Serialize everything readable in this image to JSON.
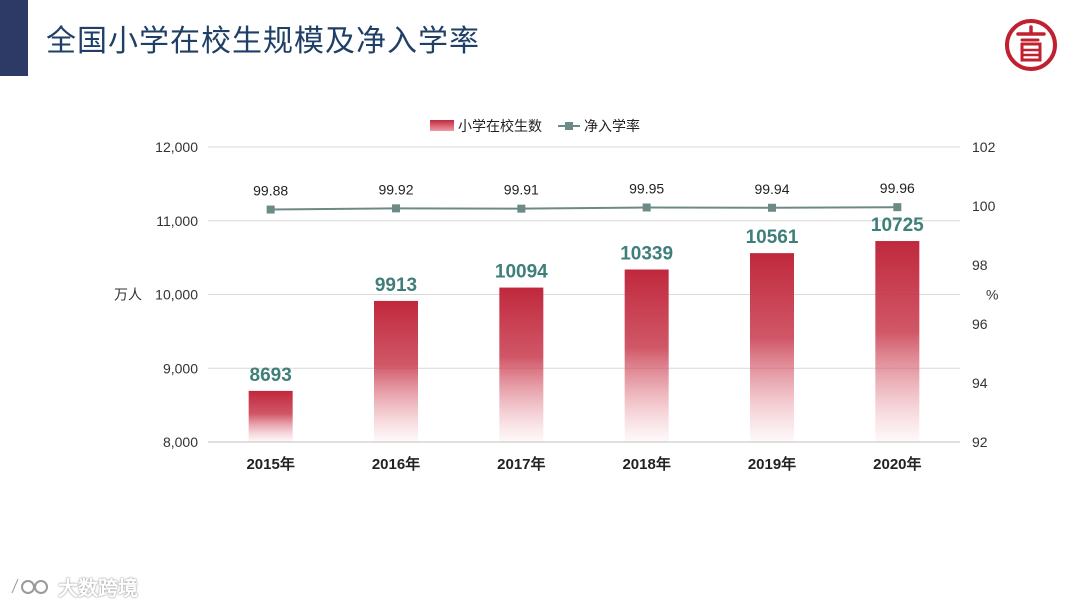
{
  "slide": {
    "title": "全国小学在校生规模及净入学率",
    "accent_color": "#2e3a66",
    "title_color": "#1f3f67",
    "logo_icon": "logo-seal-icon",
    "logo_color": "#c0202f",
    "watermark_text": "大数跨境"
  },
  "chart_data": {
    "type": "bar",
    "categories": [
      "2015年",
      "2016年",
      "2017年",
      "2018年",
      "2019年",
      "2020年"
    ],
    "series": [
      {
        "name": "小学在校生数",
        "type": "bar",
        "axis": "left",
        "values": [
          8693,
          9913,
          10094,
          10339,
          10561,
          10725
        ],
        "labels": [
          "8693",
          "9913",
          "10094",
          "10339",
          "10561",
          "10725"
        ],
        "color": "#c0283c"
      },
      {
        "name": "净入学率",
        "type": "line",
        "axis": "right",
        "values": [
          99.88,
          99.92,
          99.91,
          99.95,
          99.94,
          99.96
        ],
        "labels": [
          "99.88",
          "99.92",
          "99.91",
          "99.95",
          "99.94",
          "99.96"
        ],
        "color": "#6e8a87"
      }
    ],
    "y_left": {
      "label": "万人",
      "ylim": [
        8000,
        12000
      ],
      "ticks": [
        8000,
        9000,
        10000,
        11000,
        12000
      ],
      "tick_labels": [
        "8,000",
        "9,000",
        "10,000",
        "11,000",
        "12,000"
      ]
    },
    "y_right": {
      "label": "%",
      "ylim": [
        92,
        102
      ],
      "ticks": [
        92,
        94,
        96,
        98,
        100,
        102
      ],
      "tick_labels": [
        "92",
        "94",
        "96",
        "98",
        "100",
        "102"
      ]
    },
    "legend_position": "top-center",
    "grid": true,
    "bar_label_color": "#3f7f7a"
  }
}
